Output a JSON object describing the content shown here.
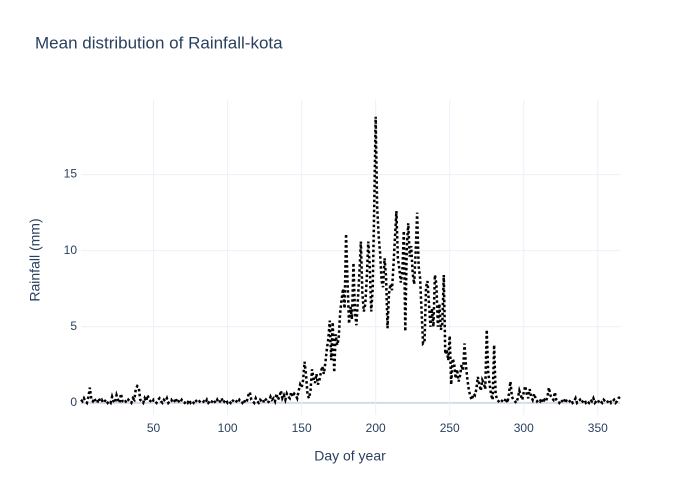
{
  "chart_data": {
    "type": "line",
    "title": "Mean distribution of Rainfall-kota",
    "x_label": "Day of year",
    "y_label": "Rainfall (mm)",
    "x": [
      1,
      2,
      3,
      4,
      5,
      6,
      7,
      8,
      9,
      10,
      11,
      12,
      13,
      14,
      15,
      16,
      17,
      18,
      19,
      20,
      21,
      22,
      23,
      24,
      25,
      26,
      27,
      28,
      29,
      30,
      31,
      32,
      33,
      34,
      35,
      36,
      37,
      38,
      39,
      40,
      41,
      42,
      43,
      44,
      45,
      46,
      47,
      48,
      49,
      50,
      51,
      52,
      53,
      54,
      55,
      56,
      57,
      58,
      59,
      60,
      61,
      62,
      63,
      64,
      65,
      66,
      67,
      68,
      69,
      70,
      71,
      72,
      73,
      74,
      75,
      76,
      77,
      78,
      79,
      80,
      81,
      82,
      83,
      84,
      85,
      86,
      87,
      88,
      89,
      90,
      91,
      92,
      93,
      94,
      95,
      96,
      97,
      98,
      99,
      100,
      101,
      102,
      103,
      104,
      105,
      106,
      107,
      108,
      109,
      110,
      111,
      112,
      113,
      114,
      115,
      116,
      117,
      118,
      119,
      120,
      121,
      122,
      123,
      124,
      125,
      126,
      127,
      128,
      129,
      130,
      131,
      132,
      133,
      134,
      135,
      136,
      137,
      138,
      139,
      140,
      141,
      142,
      143,
      144,
      145,
      146,
      147,
      148,
      149,
      150,
      151,
      152,
      153,
      154,
      155,
      156,
      157,
      158,
      159,
      160,
      161,
      162,
      163,
      164,
      165,
      166,
      167,
      168,
      169,
      170,
      171,
      172,
      173,
      174,
      175,
      176,
      177,
      178,
      179,
      180,
      181,
      182,
      183,
      184,
      185,
      186,
      187,
      188,
      189,
      190,
      191,
      192,
      193,
      194,
      195,
      196,
      197,
      198,
      199,
      200,
      201,
      202,
      203,
      204,
      205,
      206,
      207,
      208,
      209,
      210,
      211,
      212,
      213,
      214,
      215,
      216,
      217,
      218,
      219,
      220,
      221,
      222,
      223,
      224,
      225,
      226,
      227,
      228,
      229,
      230,
      231,
      232,
      233,
      234,
      235,
      236,
      237,
      238,
      239,
      240,
      241,
      242,
      243,
      244,
      245,
      246,
      247,
      248,
      249,
      250,
      251,
      252,
      253,
      254,
      255,
      256,
      257,
      258,
      259,
      260,
      261,
      262,
      263,
      264,
      265,
      266,
      267,
      268,
      269,
      270,
      271,
      272,
      273,
      274,
      275,
      276,
      277,
      278,
      279,
      280,
      281,
      282,
      283,
      284,
      285,
      286,
      287,
      288,
      289,
      290,
      291,
      292,
      293,
      294,
      295,
      296,
      297,
      298,
      299,
      300,
      301,
      302,
      303,
      304,
      305,
      306,
      307,
      308,
      309,
      310,
      311,
      312,
      313,
      314,
      315,
      316,
      317,
      318,
      319,
      320,
      321,
      322,
      323,
      324,
      325,
      326,
      327,
      328,
      329,
      330,
      331,
      332,
      333,
      334,
      335,
      336,
      337,
      338,
      339,
      340,
      341,
      342,
      343,
      344,
      345,
      346,
      347,
      348,
      349,
      350,
      351,
      352,
      353,
      354,
      355,
      356,
      357,
      358,
      359,
      360,
      361,
      362,
      363,
      364,
      365
    ],
    "series": [
      {
        "color": "#000000",
        "values": [
          0.2,
          0.1,
          0.3,
          0.1,
          0.0,
          0.4,
          1.0,
          0.2,
          0.1,
          0.3,
          0.1,
          0.0,
          0.3,
          0.1,
          0.2,
          0.0,
          0.1,
          0.2,
          0.0,
          0.1,
          0.0,
          0.4,
          0.1,
          0.0,
          0.5,
          0.2,
          0.0,
          0.6,
          0.1,
          0.0,
          0.1,
          0.0,
          0.2,
          0.1,
          0.0,
          0.3,
          0.2,
          0.9,
          1.1,
          1.0,
          0.2,
          0.1,
          0.0,
          0.3,
          0.1,
          0.5,
          0.2,
          0.1,
          0.0,
          0.2,
          0.1,
          0.0,
          0.2,
          0.3,
          0.1,
          0.0,
          0.2,
          0.1,
          0.3,
          0.0,
          0.1,
          0.2,
          0.0,
          0.1,
          0.3,
          0.0,
          0.1,
          0.0,
          0.2,
          0.1,
          0.0,
          0.1,
          0.0,
          0.2,
          0.0,
          0.1,
          0.0,
          0.2,
          0.1,
          0.0,
          0.1,
          0.0,
          0.0,
          0.1,
          0.0,
          0.2,
          0.0,
          0.1,
          0.0,
          0.2,
          0.1,
          0.0,
          0.2,
          0.0,
          0.1,
          0.3,
          0.0,
          0.1,
          0.2,
          0.0,
          0.1,
          0.0,
          0.2,
          0.1,
          0.0,
          0.1,
          0.0,
          0.2,
          0.1,
          0.0,
          0.2,
          0.0,
          0.1,
          0.5,
          0.7,
          0.2,
          0.1,
          0.0,
          0.3,
          0.1,
          0.0,
          0.2,
          0.1,
          0.0,
          0.3,
          0.2,
          0.0,
          0.1,
          0.4,
          0.2,
          0.3,
          0.1,
          0.6,
          0.2,
          0.4,
          0.8,
          0.3,
          0.5,
          0.2,
          0.6,
          0.4,
          0.3,
          0.7,
          0.4,
          0.6,
          0.5,
          0.3,
          0.8,
          1.2,
          1.0,
          1.5,
          2.7,
          1.8,
          0.5,
          0.3,
          0.8,
          2.2,
          1.6,
          1.3,
          1.9,
          1.2,
          1.5,
          2.0,
          2.4,
          1.9,
          2.6,
          3.5,
          4.2,
          5.4,
          2.8,
          5.3,
          2.0,
          4.5,
          3.8,
          4.2,
          5.9,
          6.8,
          7.5,
          6.2,
          11.1,
          8.0,
          5.2,
          6.3,
          5.5,
          9.2,
          6.0,
          5.1,
          6.8,
          8.5,
          10.6,
          7.2,
          6.0,
          6.5,
          8.2,
          10.6,
          9.0,
          6.0,
          7.5,
          12.8,
          18.8,
          12.9,
          11.0,
          9.8,
          8.0,
          7.6,
          9.5,
          8.3,
          4.9,
          7.2,
          7.8,
          7.4,
          9.0,
          10.8,
          12.6,
          9.5,
          8.8,
          7.9,
          8.6,
          11.3,
          4.7,
          10.2,
          11.8,
          9.6,
          10.3,
          8.5,
          7.8,
          9.9,
          12.5,
          9.0,
          8.2,
          6.0,
          3.9,
          4.0,
          7.6,
          8.0,
          6.5,
          5.0,
          6.2,
          5.0,
          8.4,
          7.8,
          5.0,
          6.5,
          4.8,
          5.2,
          8.4,
          3.2,
          3.5,
          2.8,
          4.4,
          1.2,
          2.9,
          2.6,
          1.6,
          2.2,
          1.4,
          1.8,
          2.5,
          2.1,
          3.9,
          2.4,
          1.5,
          0.8,
          0.4,
          0.2,
          0.6,
          0.5,
          0.9,
          1.7,
          1.2,
          0.8,
          1.5,
          1.3,
          0.9,
          4.8,
          2.0,
          1.2,
          0.5,
          0.2,
          3.8,
          0.6,
          0.2,
          0.1,
          0.0,
          0.1,
          0.2,
          0.1,
          0.3,
          0.0,
          0.6,
          1.4,
          0.4,
          0.2,
          0.1,
          0.0,
          0.3,
          0.8,
          0.5,
          0.2,
          0.7,
          1.1,
          0.6,
          0.3,
          0.9,
          0.4,
          0.2,
          0.6,
          0.3,
          0.1,
          0.2,
          0.1,
          0.3,
          0.0,
          0.2,
          0.1,
          0.4,
          1.0,
          0.5,
          0.3,
          0.2,
          0.7,
          0.2,
          0.1,
          0.0,
          0.2,
          0.1,
          0.0,
          0.3,
          0.1,
          0.0,
          0.1,
          0.2,
          0.0,
          0.1,
          0.3,
          0.0,
          0.1,
          0.2,
          0.0,
          0.1,
          0.2,
          0.0,
          0.1,
          0.0,
          0.2,
          0.1,
          0.3,
          0.0,
          0.1,
          0.2,
          0.0,
          0.1,
          0.0,
          0.2,
          0.1,
          0.0,
          0.1,
          0.2,
          0.0,
          0.1,
          0.2,
          0.0,
          0.1,
          0.3,
          0.4
        ]
      }
    ],
    "xlim": [
      1,
      365
    ],
    "xticks": [
      50,
      100,
      150,
      200,
      250,
      300,
      350
    ],
    "ylim": [
      -0.8,
      19.9
    ],
    "yticks": [
      0,
      5,
      10,
      15
    ],
    "grid": true
  }
}
